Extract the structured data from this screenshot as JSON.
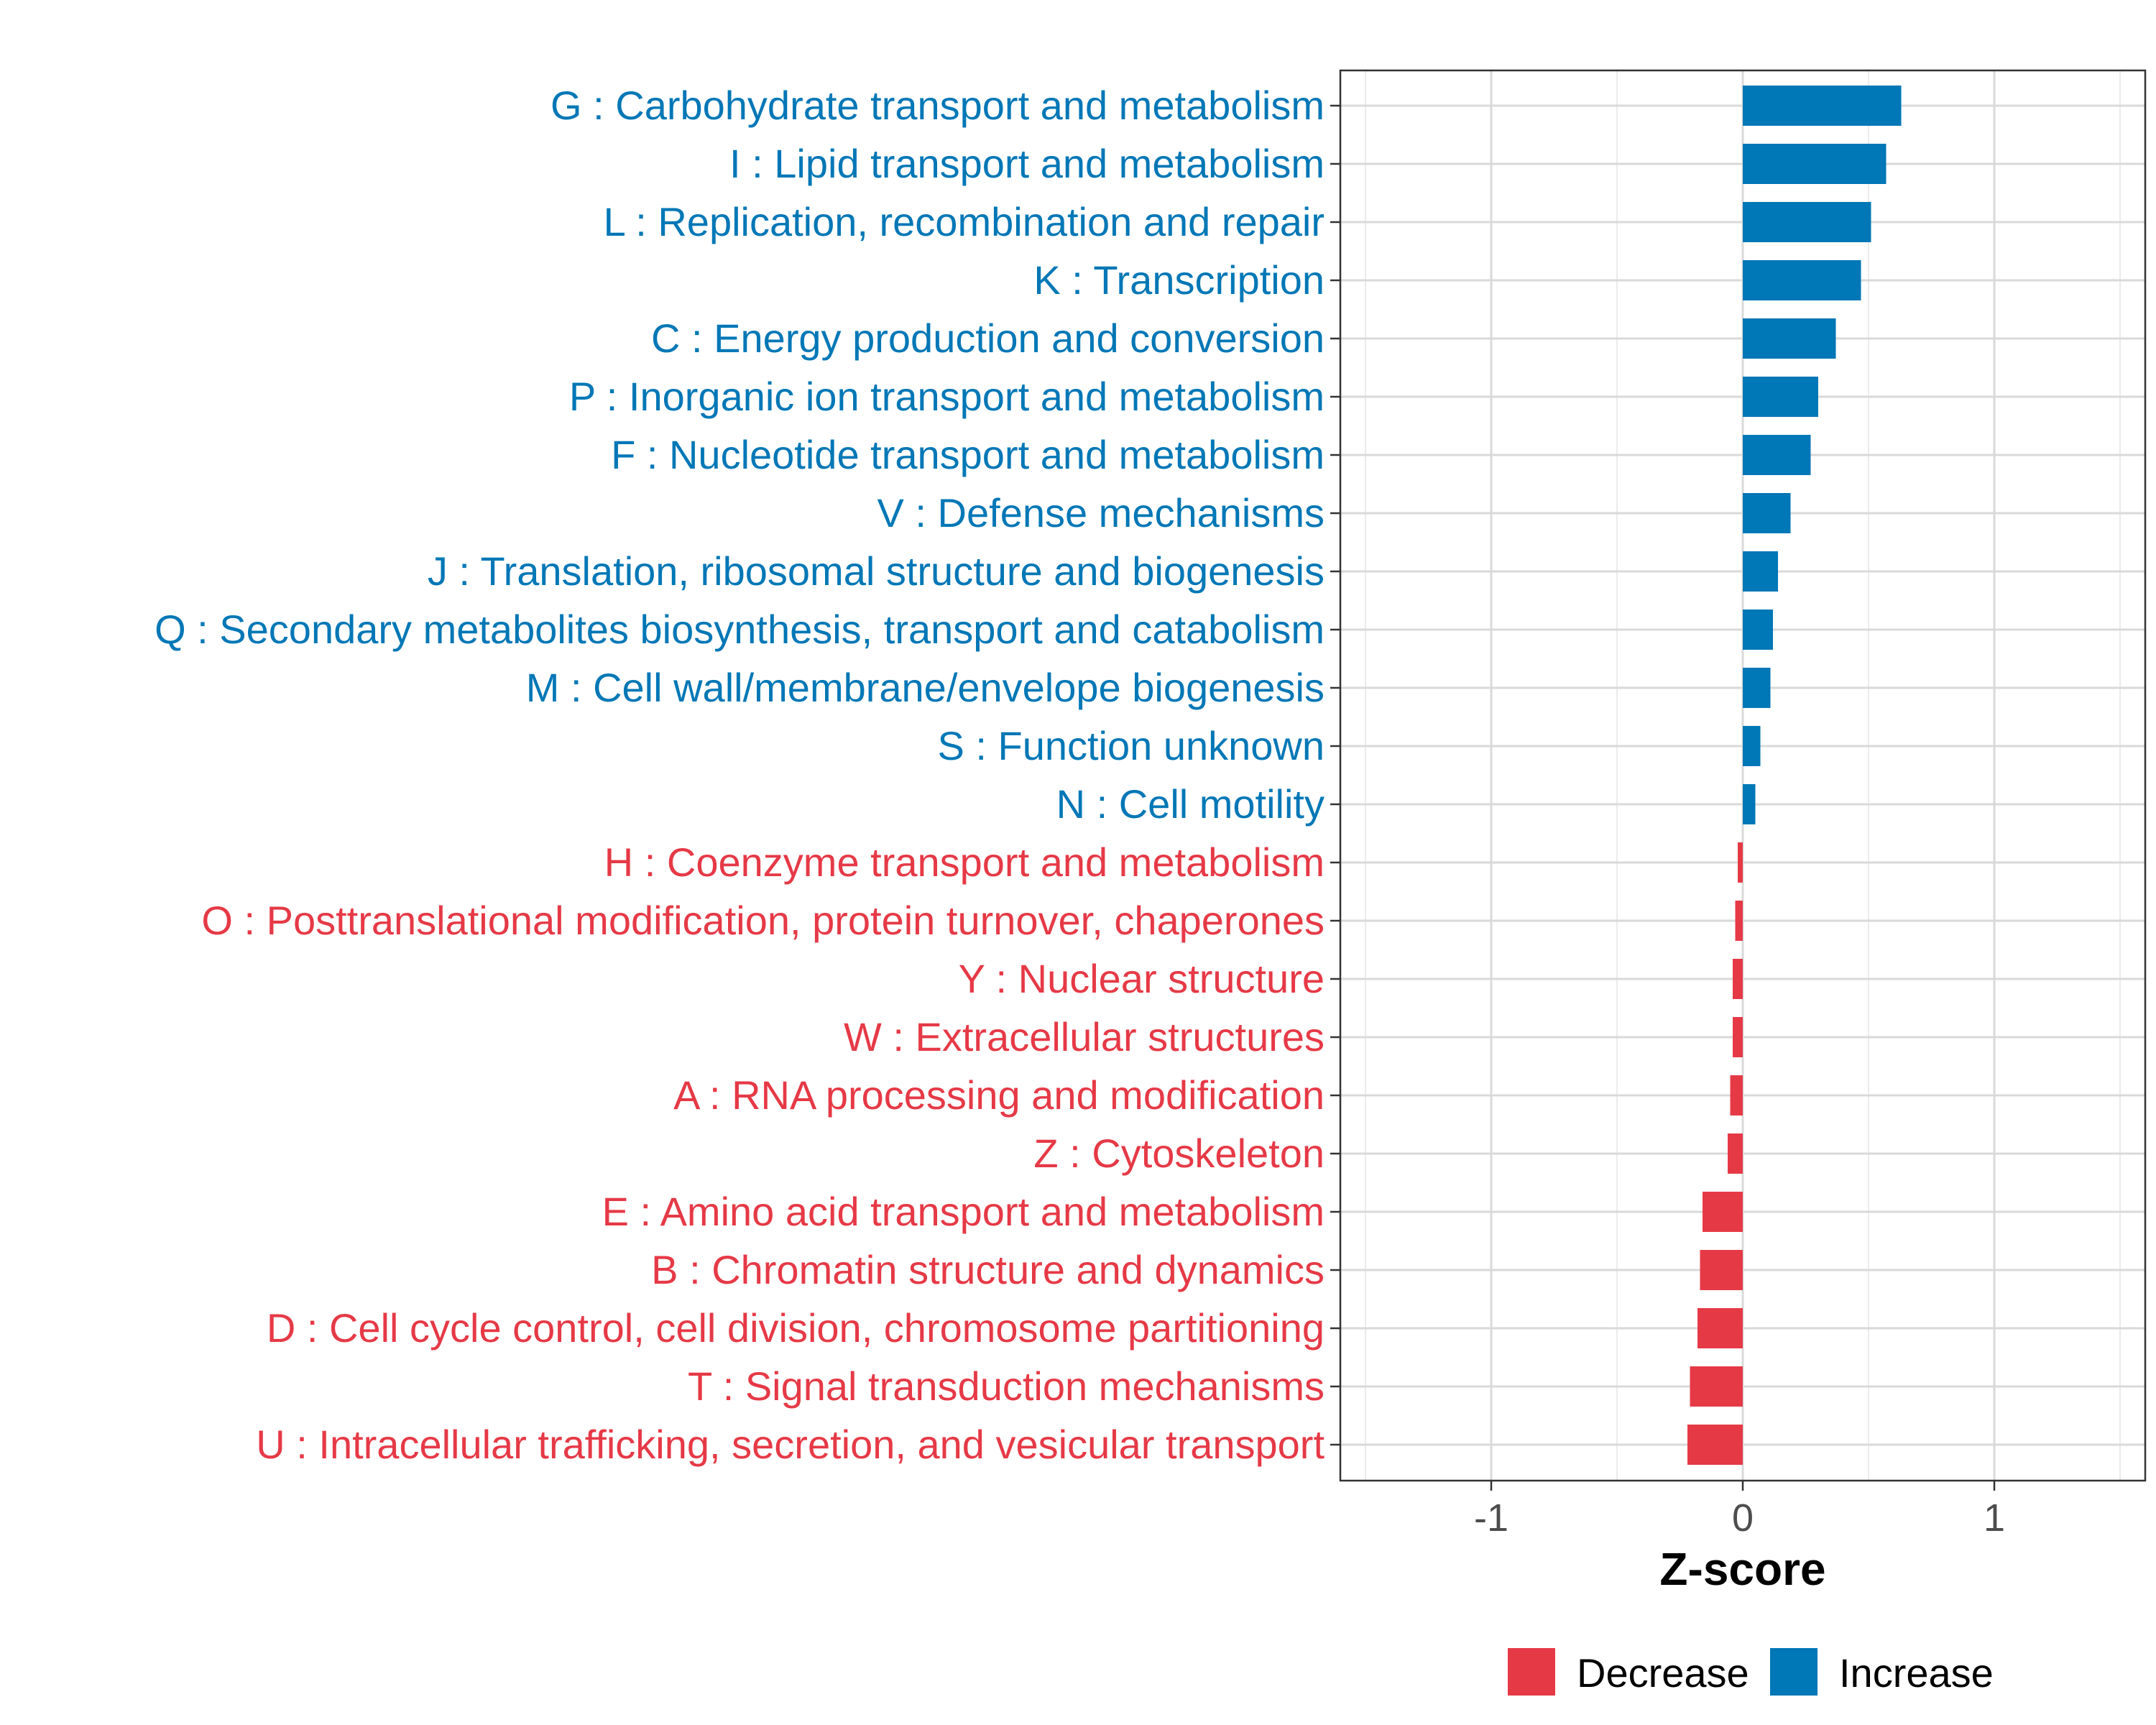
{
  "chart_data": {
    "type": "bar",
    "orientation": "horizontal",
    "xlabel": "Z-score",
    "ylabel": "",
    "xlim": [
      -1.6,
      1.6
    ],
    "x_ticks": [
      -1,
      0,
      1
    ],
    "x_tick_labels": [
      "-1",
      "0",
      "1"
    ],
    "grid": true,
    "legend_position": "bottom-right",
    "legend": [
      {
        "name": "Decrease",
        "color": "#E63946"
      },
      {
        "name": "Increase",
        "color": "#0077B6"
      }
    ],
    "categories": [
      "G : Carbohydrate transport and metabolism",
      "I : Lipid transport and metabolism",
      "L : Replication, recombination and repair",
      "K : Transcription",
      "C : Energy production and conversion",
      "P : Inorganic ion transport and metabolism",
      "F : Nucleotide transport and metabolism",
      "V : Defense mechanisms",
      "J : Translation, ribosomal structure and biogenesis",
      "Q : Secondary metabolites biosynthesis, transport and catabolism",
      "M : Cell wall/membrane/envelope biogenesis",
      "S : Function unknown",
      "N : Cell motility",
      "H : Coenzyme transport and metabolism",
      "O : Posttranslational modification, protein turnover, chaperones",
      "Y : Nuclear structure",
      "W : Extracellular structures",
      "A : RNA processing and modification",
      "Z : Cytoskeleton",
      "E : Amino acid transport and metabolism",
      "B : Chromatin structure and dynamics",
      "D : Cell cycle control, cell division, chromosome partitioning",
      "T : Signal transduction mechanisms",
      "U : Intracellular trafficking, secretion, and vesicular transport"
    ],
    "values": [
      0.63,
      0.57,
      0.51,
      0.47,
      0.37,
      0.3,
      0.27,
      0.19,
      0.14,
      0.12,
      0.11,
      0.07,
      0.05,
      -0.02,
      -0.03,
      -0.04,
      -0.04,
      -0.05,
      -0.06,
      -0.16,
      -0.17,
      -0.18,
      -0.21,
      -0.22
    ]
  }
}
